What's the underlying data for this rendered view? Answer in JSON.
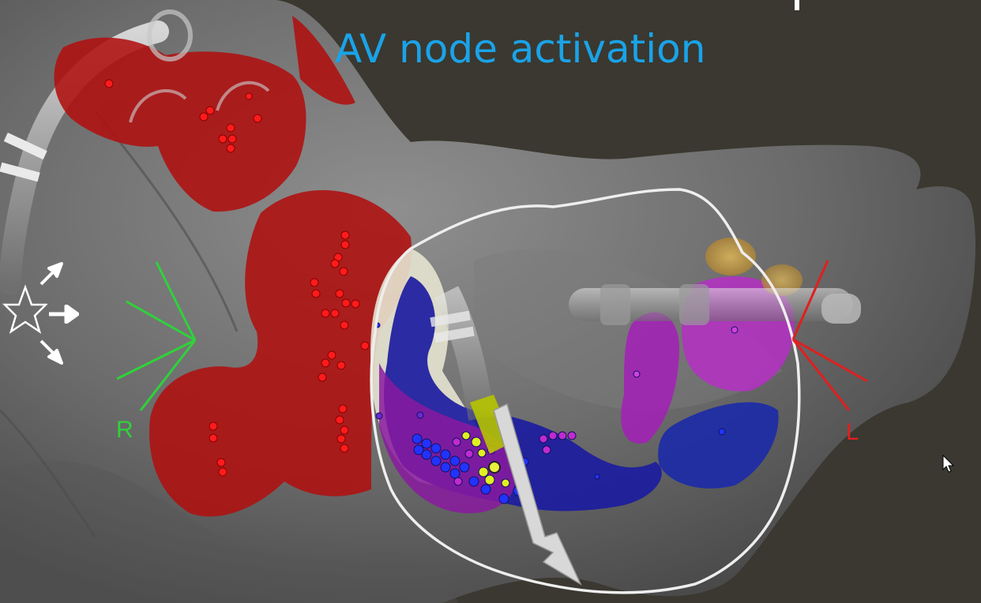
{
  "title": "AV node activation",
  "orientation_labels": {
    "right": "R",
    "left": "L"
  },
  "colors": {
    "background": "#3a3830",
    "title": "#1aa3e8",
    "right_marker": "#2fd23a",
    "left_marker": "#e01f1f",
    "ablation_red": "#b01010",
    "activation_blue": "#1c1ca0",
    "activation_purple": "#8a1aa0",
    "activation_magenta": "#b52fc4",
    "pale_zone": "#e6e3cf"
  },
  "icons": [
    "star-icon",
    "arrow-up-right-icon",
    "arrow-right-icon",
    "arrow-down-right-icon",
    "mouse-pointer-icon",
    "catheter-arrow-icon"
  ]
}
